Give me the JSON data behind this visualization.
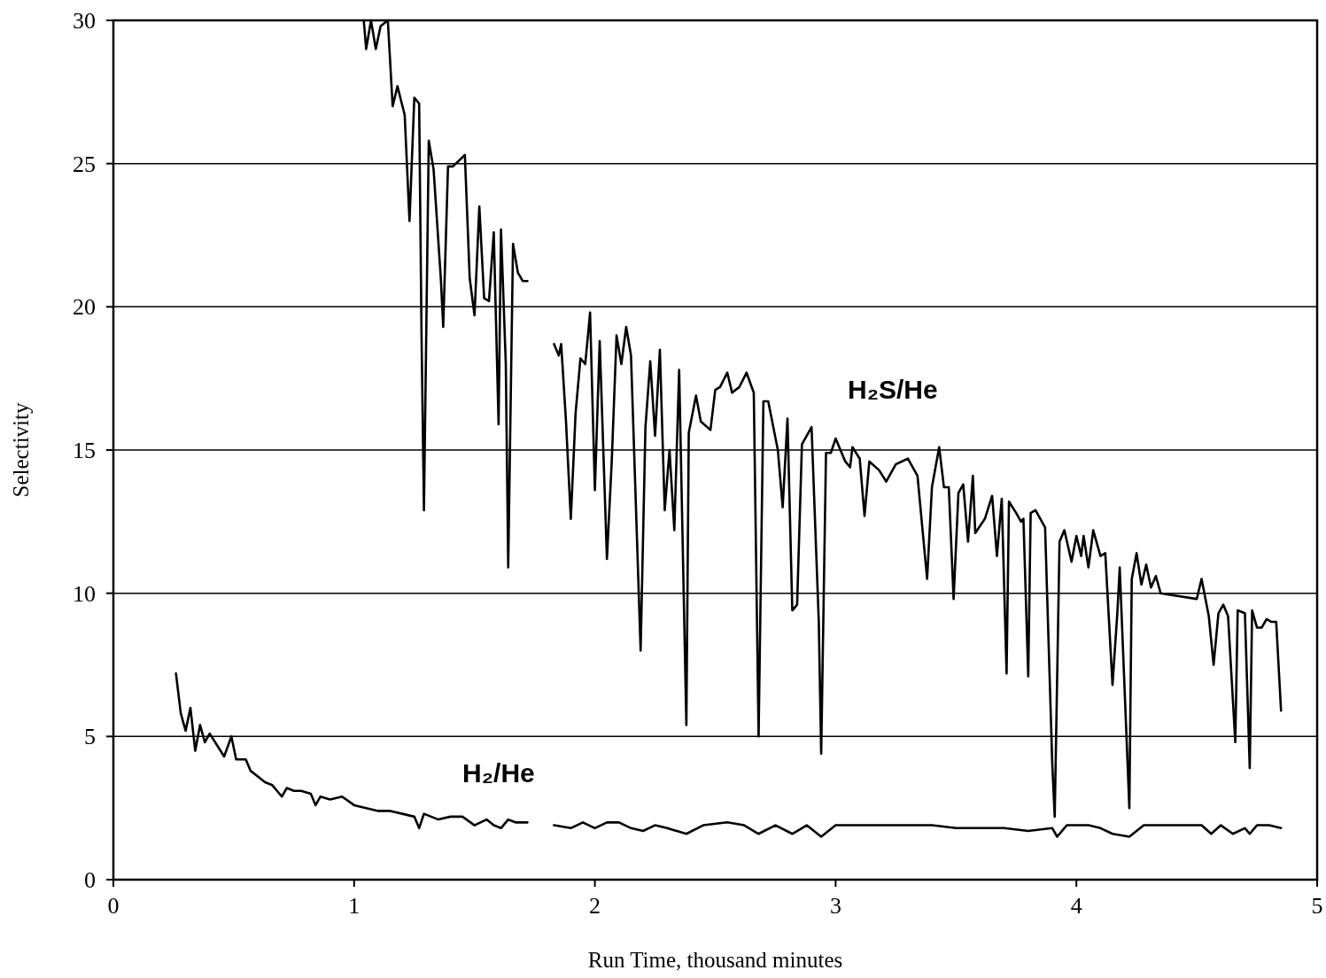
{
  "chart_data": {
    "type": "line",
    "xlabel": "Run Time, thousand minutes",
    "ylabel": "Selectivity",
    "xlim": [
      0,
      5
    ],
    "xticks": [
      0,
      1,
      2,
      3,
      4,
      5
    ],
    "ylim": [
      0,
      30
    ],
    "yticks": [
      0,
      5,
      10,
      15,
      20,
      25,
      30
    ],
    "grid": "y",
    "marker": "none",
    "line_style": "solid",
    "series": [
      {
        "name": "H₂S/He",
        "color": "#000000",
        "x": [
          1.04,
          1.05,
          1.07,
          1.09,
          1.11,
          1.14,
          1.16,
          1.18,
          1.21,
          1.23,
          1.25,
          1.27,
          1.28,
          1.29,
          1.31,
          1.33,
          1.36,
          1.37,
          1.39,
          1.41,
          1.46,
          1.48,
          1.5,
          1.52,
          1.54,
          1.56,
          1.58,
          1.6,
          1.61,
          1.63,
          1.64,
          1.66,
          1.68,
          1.7,
          1.72,
          1.77,
          1.83,
          1.85,
          1.86,
          1.88,
          1.9,
          1.92,
          1.94,
          1.96,
          1.98,
          2.0,
          2.02,
          2.05,
          2.07,
          2.09,
          2.11,
          2.13,
          2.15,
          2.19,
          2.21,
          2.23,
          2.25,
          2.27,
          2.29,
          2.31,
          2.33,
          2.35,
          2.38,
          2.39,
          2.42,
          2.44,
          2.48,
          2.5,
          2.52,
          2.55,
          2.57,
          2.6,
          2.63,
          2.66,
          2.68,
          2.7,
          2.72,
          2.76,
          2.78,
          2.8,
          2.82,
          2.84,
          2.86,
          2.9,
          2.93,
          2.94,
          2.96,
          2.98,
          3.0,
          3.04,
          3.06,
          3.07,
          3.1,
          3.12,
          3.14,
          3.18,
          3.21,
          3.25,
          3.3,
          3.34,
          3.38,
          3.4,
          3.43,
          3.45,
          3.47,
          3.49,
          3.51,
          3.53,
          3.55,
          3.57,
          3.58,
          3.62,
          3.65,
          3.67,
          3.69,
          3.71,
          3.72,
          3.75,
          3.77,
          3.78,
          3.8,
          3.81,
          3.83,
          3.87,
          3.9,
          3.91,
          3.93,
          3.95,
          3.98,
          4.0,
          4.02,
          4.03,
          4.05,
          4.07,
          4.1,
          4.12,
          4.15,
          4.17,
          4.18,
          4.22,
          4.23,
          4.25,
          4.27,
          4.29,
          4.31,
          4.33,
          4.35,
          4.5,
          4.52,
          4.55,
          4.57,
          4.59,
          4.61,
          4.63,
          4.66,
          4.67,
          4.7,
          4.72,
          4.73,
          4.75,
          4.77,
          4.79,
          4.81,
          4.83,
          4.85
        ],
        "values": [
          30,
          29,
          30,
          29,
          29.8,
          30,
          27,
          27.7,
          26.7,
          23,
          27.3,
          27.1,
          19,
          12.9,
          25.8,
          24.8,
          21,
          19.3,
          24.9,
          24.9,
          25.3,
          21,
          19.7,
          23.5,
          20.3,
          20.2,
          22.6,
          15.9,
          22.7,
          18,
          10.9,
          22.2,
          21.2,
          20.9,
          20.9,
          null,
          18.7,
          18.3,
          18.7,
          16,
          12.6,
          16.3,
          18.2,
          18,
          19.8,
          13.6,
          18.8,
          11.2,
          14.6,
          19,
          18,
          19.3,
          18.3,
          8,
          15.8,
          18.1,
          15.5,
          18.5,
          12.9,
          15,
          12.2,
          17.8,
          5.4,
          15.6,
          16.9,
          16,
          15.7,
          17.1,
          17.2,
          17.7,
          17,
          17.2,
          17.7,
          17,
          5,
          16.7,
          16.7,
          15,
          13,
          16.1,
          9.4,
          9.6,
          15.2,
          15.8,
          9,
          4.4,
          14.9,
          14.9,
          15.4,
          14.6,
          14.4,
          15.1,
          14.7,
          12.7,
          14.6,
          14.3,
          13.9,
          14.5,
          14.7,
          14.1,
          10.5,
          13.7,
          15.1,
          13.7,
          13.7,
          9.8,
          13.5,
          13.8,
          11.8,
          14.1,
          12.1,
          12.6,
          13.4,
          11.3,
          13.3,
          7.2,
          13.2,
          12.8,
          12.5,
          12.6,
          7.1,
          12.8,
          12.9,
          12.3,
          4,
          2.2,
          11.8,
          12.2,
          11.1,
          12,
          11.3,
          12,
          10.9,
          12.2,
          11.3,
          11.4,
          6.8,
          9.3,
          10.9,
          2.5,
          10.5,
          11.4,
          10.3,
          11,
          10.2,
          10.6,
          10,
          9.8,
          10.5,
          9.2,
          7.5,
          9.3,
          9.6,
          9.2,
          4.8,
          9.4,
          9.3,
          3.9,
          9.4,
          8.8,
          8.8,
          9.1,
          9,
          9,
          5.9
        ]
      },
      {
        "name": "H₂/He",
        "color": "#000000",
        "x": [
          0.26,
          0.28,
          0.3,
          0.32,
          0.34,
          0.36,
          0.38,
          0.4,
          0.43,
          0.46,
          0.49,
          0.51,
          0.55,
          0.57,
          0.6,
          0.63,
          0.66,
          0.7,
          0.72,
          0.75,
          0.78,
          0.82,
          0.84,
          0.86,
          0.9,
          0.95,
          1.0,
          1.05,
          1.1,
          1.15,
          1.2,
          1.25,
          1.27,
          1.29,
          1.35,
          1.4,
          1.45,
          1.5,
          1.55,
          1.58,
          1.61,
          1.64,
          1.67,
          1.72,
          1.77,
          1.83,
          1.9,
          1.95,
          2.0,
          2.05,
          2.1,
          2.15,
          2.2,
          2.25,
          2.3,
          2.38,
          2.45,
          2.55,
          2.62,
          2.68,
          2.75,
          2.82,
          2.88,
          2.94,
          3.0,
          3.1,
          3.2,
          3.3,
          3.4,
          3.5,
          3.6,
          3.7,
          3.8,
          3.9,
          3.92,
          3.96,
          4.05,
          4.1,
          4.15,
          4.22,
          4.28,
          4.35,
          4.45,
          4.52,
          4.56,
          4.6,
          4.65,
          4.7,
          4.72,
          4.75,
          4.8,
          4.85
        ],
        "values": [
          7.2,
          5.8,
          5.2,
          6,
          4.5,
          5.4,
          4.8,
          5.1,
          4.7,
          4.3,
          5,
          4.2,
          4.2,
          3.8,
          3.6,
          3.4,
          3.3,
          2.9,
          3.2,
          3.1,
          3.1,
          3,
          2.6,
          2.9,
          2.8,
          2.9,
          2.6,
          2.5,
          2.4,
          2.4,
          2.3,
          2.2,
          1.8,
          2.3,
          2.1,
          2.2,
          2.2,
          1.9,
          2.1,
          1.9,
          1.8,
          2.1,
          2,
          2,
          null,
          1.9,
          1.8,
          2,
          1.8,
          2,
          2,
          1.8,
          1.7,
          1.9,
          1.8,
          1.6,
          1.9,
          2,
          1.9,
          1.6,
          1.9,
          1.6,
          1.9,
          1.5,
          1.9,
          1.9,
          1.9,
          1.9,
          1.9,
          1.8,
          1.8,
          1.8,
          1.7,
          1.8,
          1.5,
          1.9,
          1.9,
          1.8,
          1.6,
          1.5,
          1.9,
          1.9,
          1.9,
          1.9,
          1.6,
          1.9,
          1.6,
          1.8,
          1.6,
          1.9,
          1.9,
          1.8
        ]
      }
    ]
  }
}
